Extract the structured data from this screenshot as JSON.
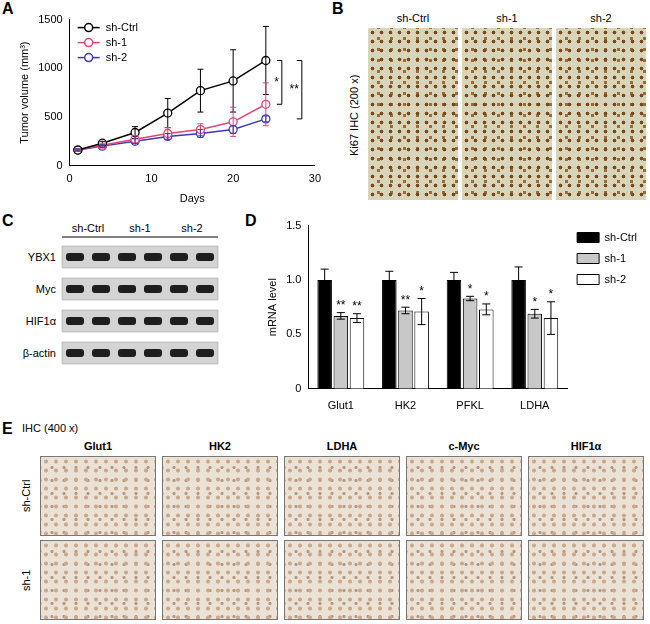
{
  "panel_letters": [
    "A",
    "B",
    "C",
    "D",
    "E"
  ],
  "chart_data": [
    {
      "type": "line",
      "x_label": "Days",
      "y_label": "Tumor volume (mm³)",
      "x": [
        1,
        4,
        8,
        12,
        16,
        20,
        24
      ],
      "series": [
        {
          "name": "sh-Ctrl",
          "color": "#000000",
          "marker": "open_circle",
          "line_style": "solid",
          "values": [
            160,
            230,
            340,
            540,
            770,
            870,
            1080
          ],
          "errors": [
            10,
            20,
            60,
            150,
            220,
            320,
            350
          ]
        },
        {
          "name": "sh-1",
          "color": "#e0457b",
          "marker": "open_circle",
          "line_style": "solid",
          "values": [
            160,
            210,
            270,
            330,
            370,
            450,
            630
          ],
          "errors": [
            10,
            20,
            40,
            60,
            60,
            150,
            220
          ]
        },
        {
          "name": "sh-2",
          "color": "#3b3bb5",
          "marker": "open_circle",
          "line_style": "solid",
          "values": [
            160,
            200,
            250,
            300,
            330,
            370,
            480
          ],
          "errors": [
            10,
            15,
            25,
            30,
            40,
            40,
            30
          ]
        }
      ],
      "xlim": [
        0,
        30
      ],
      "xticks": [
        0,
        10,
        20,
        30
      ],
      "ylim": [
        0,
        1500
      ],
      "yticks": [
        0,
        500,
        1000,
        1500
      ],
      "grid": false,
      "legend": "upper left",
      "annotations": [
        {
          "text": "*",
          "between": [
            "sh-Ctrl",
            "sh-1"
          ]
        },
        {
          "text": "**",
          "between": [
            "sh-Ctrl",
            "sh-2"
          ]
        }
      ]
    },
    {
      "type": "bar",
      "y_label": "mRNA level",
      "categories": [
        "Glut1",
        "HK2",
        "PFKL",
        "LDHA"
      ],
      "series": [
        {
          "name": "sh-Ctrl",
          "color": "#000000",
          "values": [
            1,
            1,
            1,
            1
          ],
          "errors": [
            0.1,
            0.08,
            0.07,
            0.12
          ],
          "significance": [
            null,
            null,
            null,
            null
          ]
        },
        {
          "name": "sh-1",
          "color": "#c8c8c8",
          "values": [
            0.67,
            0.72,
            0.83,
            0.69
          ],
          "errors": [
            0.03,
            0.03,
            0.02,
            0.04
          ],
          "significance": [
            "**",
            "**",
            "*",
            "*"
          ]
        },
        {
          "name": "sh-2",
          "color": "#ffffff",
          "values": [
            0.65,
            0.71,
            0.73,
            0.65
          ],
          "errors": [
            0.04,
            0.12,
            0.05,
            0.15
          ],
          "significance": [
            "**",
            "*",
            "*",
            "*"
          ]
        }
      ],
      "ylim": [
        0,
        1.5
      ],
      "yticks": [
        0,
        0.5,
        {
          "value": 1,
          "label": "1.0"
        },
        1.5
      ],
      "grid": false,
      "legend": "right"
    }
  ],
  "ki67_ihc": {
    "title": "Ki67 IHC (200 x)",
    "columns": [
      "sh-Ctrl",
      "sh-1",
      "sh-2"
    ]
  },
  "western_blot": {
    "columns": [
      "sh-Ctrl",
      "sh-1",
      "sh-2"
    ],
    "rows": [
      "YBX1",
      "Myc",
      "HIF1α",
      "β-actin"
    ]
  },
  "ihc_panel": {
    "title": "IHC (400 x)",
    "columns": [
      "Glut1",
      "HK2",
      "LDHA",
      "c-Myc",
      "HIF1α"
    ],
    "rows": [
      "sh-Ctrl",
      "sh-1"
    ]
  }
}
